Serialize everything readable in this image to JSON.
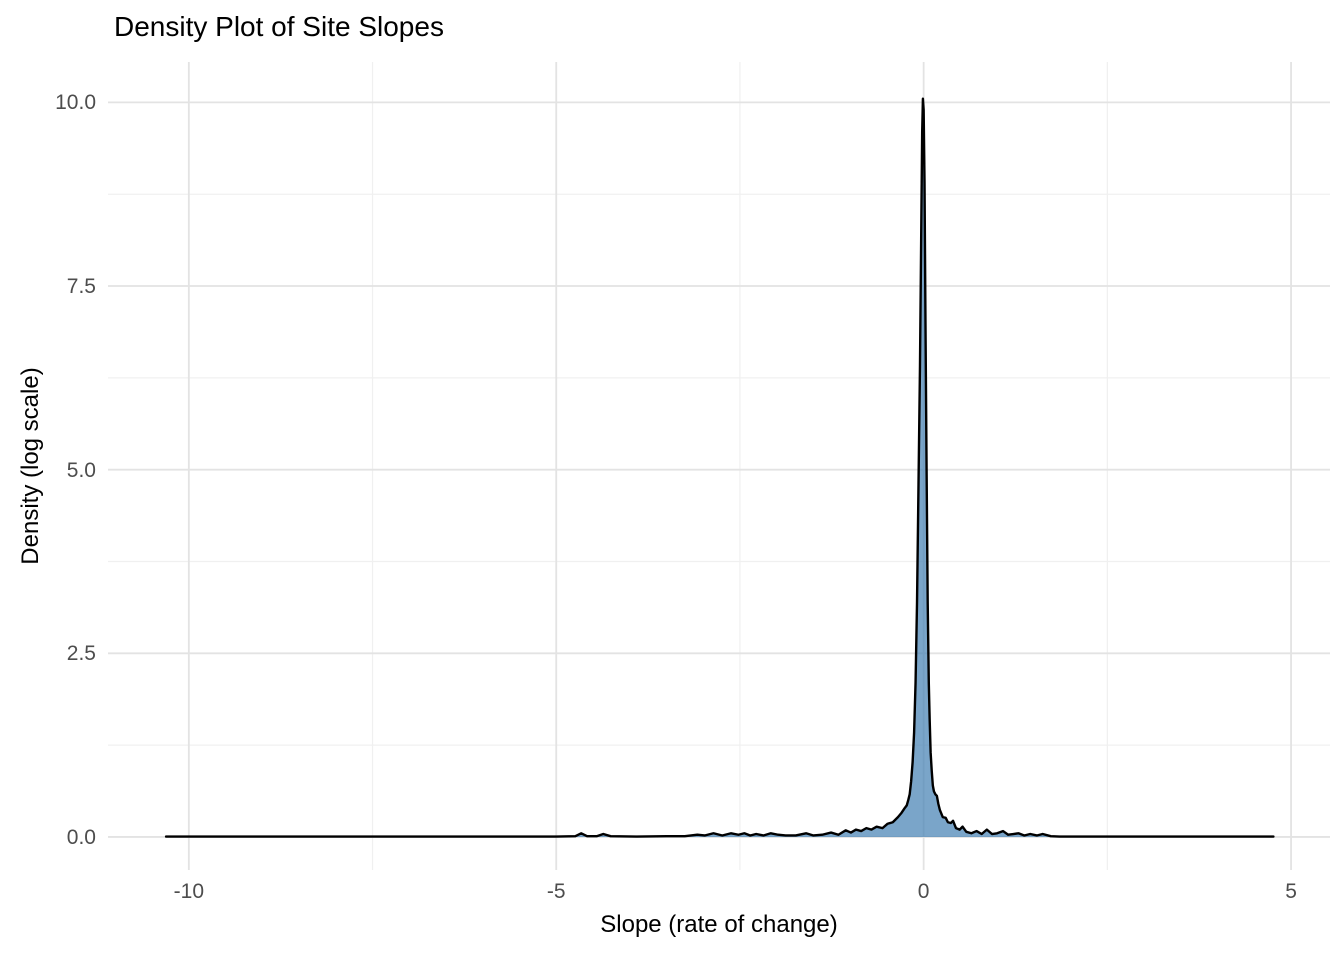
{
  "chart_data": {
    "type": "area",
    "title": "Density Plot of Site Slopes",
    "xlabel": "Slope (rate of change)",
    "ylabel": "Density (log scale)",
    "grid": true,
    "legend": false,
    "xlim": [
      -11.1,
      5.53
    ],
    "ylim": [
      -0.45,
      10.55
    ],
    "x_ticks": [
      -10,
      -5,
      0,
      5
    ],
    "x_tick_labels": [
      "-10",
      "-5",
      "0",
      "5"
    ],
    "y_ticks": [
      0,
      2.5,
      5,
      7.5,
      10
    ],
    "y_tick_labels": [
      "0.0",
      "2.5",
      "5.0",
      "7.5",
      "10.0"
    ],
    "peak": {
      "x": -0.01,
      "density": 10.05
    },
    "x_data_range": [
      -10.31,
      4.76
    ],
    "series": [
      {
        "name": "density",
        "points": [
          [
            -10.31,
            0.005
          ],
          [
            -9.0,
            0.005
          ],
          [
            -7.5,
            0.005
          ],
          [
            -6.0,
            0.005
          ],
          [
            -5.0,
            0.005
          ],
          [
            -4.74,
            0.01
          ],
          [
            -4.66,
            0.05
          ],
          [
            -4.58,
            0.01
          ],
          [
            -4.45,
            0.01
          ],
          [
            -4.36,
            0.04
          ],
          [
            -4.26,
            0.01
          ],
          [
            -3.9,
            0.005
          ],
          [
            -3.5,
            0.01
          ],
          [
            -3.25,
            0.01
          ],
          [
            -3.08,
            0.03
          ],
          [
            -2.98,
            0.02
          ],
          [
            -2.86,
            0.05
          ],
          [
            -2.74,
            0.02
          ],
          [
            -2.62,
            0.05
          ],
          [
            -2.52,
            0.03
          ],
          [
            -2.44,
            0.05
          ],
          [
            -2.36,
            0.02
          ],
          [
            -2.28,
            0.04
          ],
          [
            -2.18,
            0.02
          ],
          [
            -2.08,
            0.05
          ],
          [
            -1.98,
            0.03
          ],
          [
            -1.88,
            0.02
          ],
          [
            -1.74,
            0.02
          ],
          [
            -1.6,
            0.05
          ],
          [
            -1.5,
            0.02
          ],
          [
            -1.38,
            0.03
          ],
          [
            -1.26,
            0.06
          ],
          [
            -1.16,
            0.03
          ],
          [
            -1.06,
            0.09
          ],
          [
            -0.99,
            0.06
          ],
          [
            -0.92,
            0.1
          ],
          [
            -0.85,
            0.08
          ],
          [
            -0.78,
            0.12
          ],
          [
            -0.71,
            0.1
          ],
          [
            -0.64,
            0.14
          ],
          [
            -0.56,
            0.12
          ],
          [
            -0.49,
            0.18
          ],
          [
            -0.42,
            0.2
          ],
          [
            -0.35,
            0.27
          ],
          [
            -0.3,
            0.33
          ],
          [
            -0.26,
            0.39
          ],
          [
            -0.23,
            0.43
          ],
          [
            -0.21,
            0.5
          ],
          [
            -0.19,
            0.58
          ],
          [
            -0.17,
            0.76
          ],
          [
            -0.15,
            1.02
          ],
          [
            -0.13,
            1.42
          ],
          [
            -0.11,
            2.1
          ],
          [
            -0.09,
            3.2
          ],
          [
            -0.07,
            4.8
          ],
          [
            -0.05,
            6.4
          ],
          [
            -0.035,
            8.0
          ],
          [
            -0.02,
            9.6
          ],
          [
            -0.01,
            10.05
          ],
          [
            0.0,
            9.9
          ],
          [
            0.012,
            8.9
          ],
          [
            0.025,
            7.0
          ],
          [
            0.04,
            5.0
          ],
          [
            0.055,
            3.2
          ],
          [
            0.07,
            2.1
          ],
          [
            0.082,
            1.6
          ],
          [
            0.095,
            1.15
          ],
          [
            0.11,
            0.9
          ],
          [
            0.125,
            0.7
          ],
          [
            0.14,
            0.62
          ],
          [
            0.16,
            0.58
          ],
          [
            0.18,
            0.56
          ],
          [
            0.2,
            0.45
          ],
          [
            0.22,
            0.37
          ],
          [
            0.26,
            0.27
          ],
          [
            0.3,
            0.26
          ],
          [
            0.33,
            0.2
          ],
          [
            0.37,
            0.19
          ],
          [
            0.4,
            0.22
          ],
          [
            0.44,
            0.12
          ],
          [
            0.49,
            0.1
          ],
          [
            0.53,
            0.14
          ],
          [
            0.58,
            0.07
          ],
          [
            0.65,
            0.05
          ],
          [
            0.72,
            0.08
          ],
          [
            0.79,
            0.04
          ],
          [
            0.86,
            0.1
          ],
          [
            0.93,
            0.04
          ],
          [
            1.0,
            0.05
          ],
          [
            1.08,
            0.08
          ],
          [
            1.15,
            0.03
          ],
          [
            1.22,
            0.04
          ],
          [
            1.29,
            0.05
          ],
          [
            1.37,
            0.02
          ],
          [
            1.45,
            0.04
          ],
          [
            1.54,
            0.02
          ],
          [
            1.62,
            0.04
          ],
          [
            1.73,
            0.01
          ],
          [
            1.85,
            0.005
          ],
          [
            2.2,
            0.005
          ],
          [
            2.8,
            0.005
          ],
          [
            3.4,
            0.005
          ],
          [
            4.0,
            0.005
          ],
          [
            4.5,
            0.005
          ],
          [
            4.76,
            0.005
          ]
        ]
      }
    ],
    "colors": {
      "fill": "#4682B4",
      "fill_opacity": 0.72,
      "line": "#000000",
      "grid_major": "#E3E3E3",
      "grid_minor": "#F0F0F0",
      "tick_label": "#4D4D4D",
      "text": "#000000",
      "background": "#FFFFFF"
    }
  }
}
